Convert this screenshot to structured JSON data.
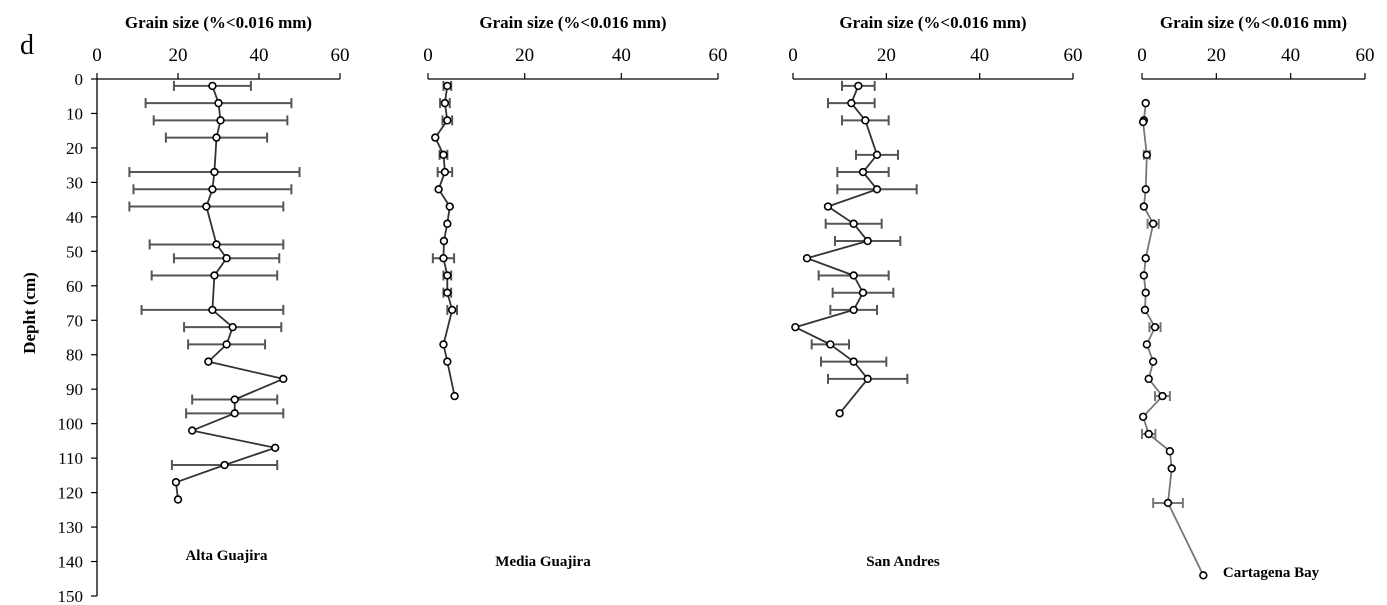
{
  "panel_letter": "d",
  "y_axis_label": "Depht (cm)",
  "y_ticks": [
    0,
    10,
    20,
    30,
    40,
    50,
    60,
    70,
    80,
    90,
    100,
    110,
    120,
    130,
    140,
    150
  ],
  "chart_data": [
    {
      "type": "line",
      "title": "Alta Guajira",
      "xlabel": "Grain size (%<0.016 mm)",
      "ylabel": "Depht (cm)",
      "x_ticks": [
        0,
        20,
        40,
        60
      ],
      "xlim": [
        0,
        60
      ],
      "ylim": [
        150,
        0
      ],
      "y_inverted": true,
      "x_axis_position": "top",
      "line_color": "#333333",
      "error_color": "#555555",
      "points": [
        {
          "x": 28.5,
          "y": 2,
          "err": 9.5
        },
        {
          "x": 30,
          "y": 7,
          "err": 18
        },
        {
          "x": 30.5,
          "y": 12,
          "err": 16.5
        },
        {
          "x": 29.5,
          "y": 17,
          "err": 12.5
        },
        {
          "x": 29,
          "y": 27,
          "err": 21
        },
        {
          "x": 28.5,
          "y": 32,
          "err": 19.5
        },
        {
          "x": 27,
          "y": 37,
          "err": 19
        },
        {
          "x": 29.5,
          "y": 48,
          "err": 16.5
        },
        {
          "x": 32,
          "y": 52,
          "err": 13
        },
        {
          "x": 29,
          "y": 57,
          "err": 15.5
        },
        {
          "x": 28.5,
          "y": 67,
          "err": 17.5
        },
        {
          "x": 33.5,
          "y": 72,
          "err": 12
        },
        {
          "x": 32,
          "y": 77,
          "err": 9.5
        },
        {
          "x": 27.5,
          "y": 82
        },
        {
          "x": 46,
          "y": 87
        },
        {
          "x": 34,
          "y": 93,
          "err": 10.5
        },
        {
          "x": 34,
          "y": 97,
          "err": 12
        },
        {
          "x": 23.5,
          "y": 102
        },
        {
          "x": 44,
          "y": 107
        },
        {
          "x": 31.5,
          "y": 112,
          "err": 13
        },
        {
          "x": 19.5,
          "y": 117
        },
        {
          "x": 20,
          "y": 122
        }
      ]
    },
    {
      "type": "line",
      "title": "Media Guajira",
      "xlabel": "Grain size (%<0.016 mm)",
      "ylabel": "",
      "x_ticks": [
        0,
        20,
        40,
        60
      ],
      "xlim": [
        0,
        60
      ],
      "ylim": [
        150,
        0
      ],
      "y_inverted": true,
      "x_axis_position": "top",
      "line_color": "#333333",
      "error_color": "#555555",
      "points": [
        {
          "x": 4,
          "y": 2,
          "err": 0.8
        },
        {
          "x": 3.5,
          "y": 7,
          "err": 1
        },
        {
          "x": 4,
          "y": 12,
          "err": 1
        },
        {
          "x": 1.5,
          "y": 17
        },
        {
          "x": 3.2,
          "y": 22,
          "err": 0.8
        },
        {
          "x": 3.5,
          "y": 27,
          "err": 1.5
        },
        {
          "x": 2.2,
          "y": 32
        },
        {
          "x": 4.5,
          "y": 37
        },
        {
          "x": 4,
          "y": 42
        },
        {
          "x": 3.3,
          "y": 47
        },
        {
          "x": 3.2,
          "y": 52,
          "err": 2.2
        },
        {
          "x": 4,
          "y": 57,
          "err": 0.8
        },
        {
          "x": 4,
          "y": 62,
          "err": 0.8
        },
        {
          "x": 5,
          "y": 67,
          "err": 1
        },
        {
          "x": 3.2,
          "y": 77
        },
        {
          "x": 4,
          "y": 82
        },
        {
          "x": 5.5,
          "y": 92
        }
      ]
    },
    {
      "type": "line",
      "title": "San Andres",
      "xlabel": "Grain size (%<0.016 mm)",
      "ylabel": "",
      "x_ticks": [
        0,
        20,
        40,
        60
      ],
      "xlim": [
        0,
        60
      ],
      "ylim": [
        150,
        0
      ],
      "y_inverted": true,
      "x_axis_position": "top",
      "line_color": "#333333",
      "error_color": "#555555",
      "points": [
        {
          "x": 14,
          "y": 2,
          "err": 3.5
        },
        {
          "x": 12.5,
          "y": 7,
          "err": 5
        },
        {
          "x": 15.5,
          "y": 12,
          "err": 5
        },
        {
          "x": 18,
          "y": 22,
          "err": 4.5
        },
        {
          "x": 15,
          "y": 27,
          "err": 5.5
        },
        {
          "x": 18,
          "y": 32,
          "err": 8.5
        },
        {
          "x": 7.5,
          "y": 37
        },
        {
          "x": 13,
          "y": 42,
          "err": 6
        },
        {
          "x": 16,
          "y": 47,
          "err": 7
        },
        {
          "x": 3,
          "y": 52
        },
        {
          "x": 13,
          "y": 57,
          "err": 7.5
        },
        {
          "x": 15,
          "y": 62,
          "err": 6.5
        },
        {
          "x": 13,
          "y": 67,
          "err": 5
        },
        {
          "x": 0.5,
          "y": 72
        },
        {
          "x": 8,
          "y": 77,
          "err": 4
        },
        {
          "x": 13,
          "y": 82,
          "err": 7
        },
        {
          "x": 16,
          "y": 87,
          "err": 8.5
        },
        {
          "x": 10,
          "y": 97
        }
      ]
    },
    {
      "type": "line",
      "title": "Cartagena Bay",
      "xlabel": "Grain size (%<0.016 mm)",
      "ylabel": "",
      "x_ticks": [
        0,
        20,
        40,
        60
      ],
      "xlim": [
        0,
        60
      ],
      "ylim": [
        150,
        0
      ],
      "y_inverted": true,
      "x_axis_position": "top",
      "line_color": "#777777",
      "error_color": "#777777",
      "points": [
        {
          "x": 1,
          "y": 7
        },
        {
          "x": 0.5,
          "y": 12
        },
        {
          "x": 0.3,
          "y": 12.5
        },
        {
          "x": 1.3,
          "y": 22,
          "err": 0.8
        },
        {
          "x": 1,
          "y": 32
        },
        {
          "x": 0.5,
          "y": 37
        },
        {
          "x": 3,
          "y": 42,
          "err": 1.5
        },
        {
          "x": 1,
          "y": 52
        },
        {
          "x": 0.5,
          "y": 57
        },
        {
          "x": 1,
          "y": 62
        },
        {
          "x": 0.8,
          "y": 67
        },
        {
          "x": 3.5,
          "y": 72,
          "err": 1.5
        },
        {
          "x": 1.3,
          "y": 77
        },
        {
          "x": 3,
          "y": 82
        },
        {
          "x": 1.8,
          "y": 87
        },
        {
          "x": 5.5,
          "y": 92,
          "err": 2
        },
        {
          "x": 0.3,
          "y": 98
        },
        {
          "x": 1.8,
          "y": 103,
          "err": 1.8
        },
        {
          "x": 7.5,
          "y": 108
        },
        {
          "x": 8,
          "y": 113
        },
        {
          "x": 7,
          "y": 123,
          "err": 4
        },
        {
          "x": 16.5,
          "y": 144
        }
      ]
    }
  ]
}
